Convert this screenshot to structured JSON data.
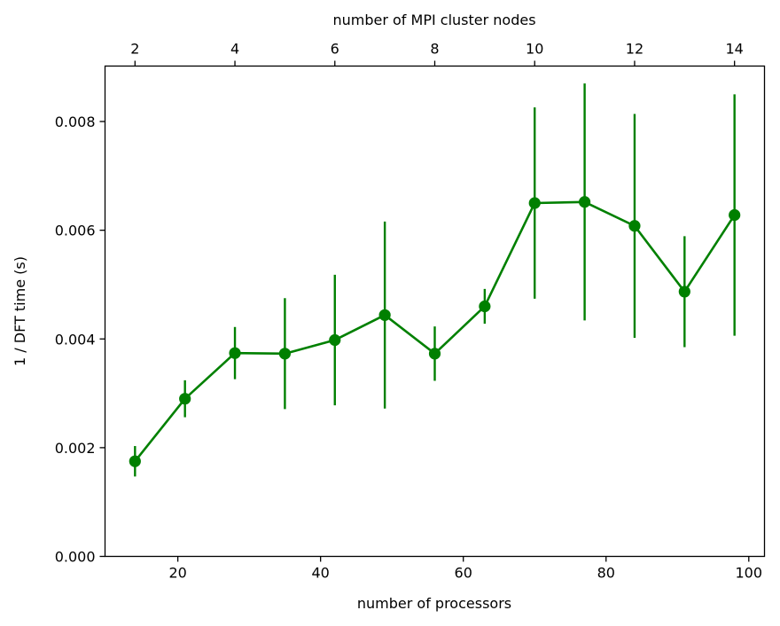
{
  "chart_data": {
    "type": "line",
    "xlabel": "number of processors",
    "x2label": "number of MPI cluster nodes",
    "ylabel": "1 / DFT time (s)",
    "xlim": [
      9.8,
      102.2
    ],
    "ylim": [
      0,
      0.00902
    ],
    "x_ticks": [
      20,
      40,
      60,
      80,
      100
    ],
    "x2_ticks": [
      2,
      4,
      6,
      8,
      10,
      12,
      14
    ],
    "y_ticks": [
      "0.000",
      "0.002",
      "0.004",
      "0.006",
      "0.008"
    ],
    "grid": false,
    "series": [
      {
        "color": "#008000",
        "nodes": [
          2,
          3,
          4,
          5,
          6,
          7,
          8,
          9,
          10,
          11,
          12,
          13,
          14
        ],
        "x": [
          14,
          21,
          28,
          35,
          42,
          49,
          56,
          63,
          70,
          77,
          84,
          91,
          98
        ],
        "y": [
          0.00175,
          0.0029,
          0.00374,
          0.00373,
          0.00398,
          0.00444,
          0.00373,
          0.0046,
          0.0065,
          0.00652,
          0.00608,
          0.00487,
          0.00628
        ],
        "err": [
          0.00028,
          0.00034,
          0.00048,
          0.00102,
          0.0012,
          0.00172,
          0.0005,
          0.00032,
          0.00176,
          0.00218,
          0.00206,
          0.00102,
          0.00222
        ]
      }
    ]
  }
}
